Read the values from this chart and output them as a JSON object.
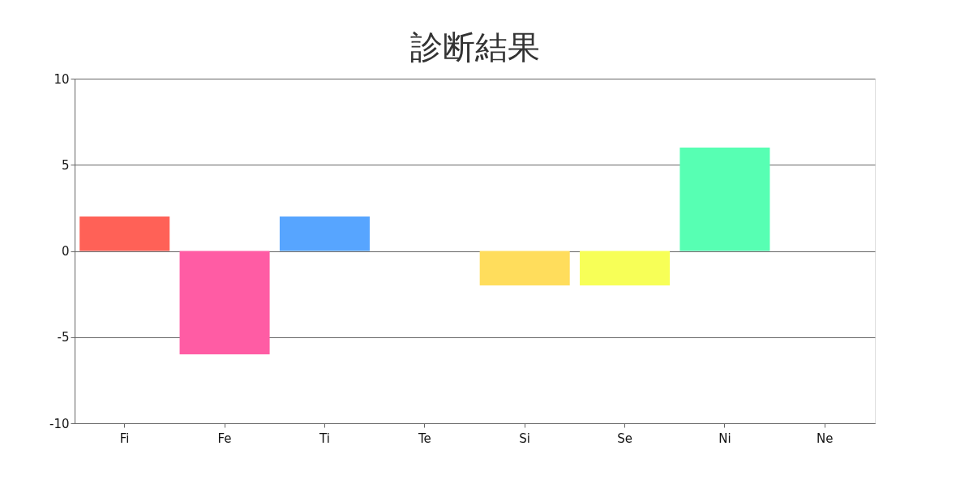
{
  "chart_data": {
    "type": "bar",
    "title": "診断結果",
    "categories": [
      "Fi",
      "Fe",
      "Ti",
      "Te",
      "Si",
      "Se",
      "Ni",
      "Ne"
    ],
    "values": [
      2,
      -6,
      2,
      0,
      -2,
      -2,
      6,
      0
    ],
    "colors": [
      "#ff6157",
      "#ff5ca4",
      "#57a5ff",
      "#a657ff",
      "#ffdd5c",
      "#f7ff57",
      "#57ffb3",
      "#ff9c57"
    ],
    "ylim": [
      -10,
      10
    ],
    "yticks": [
      -10,
      -5,
      0,
      5,
      10
    ],
    "grid": "y"
  }
}
